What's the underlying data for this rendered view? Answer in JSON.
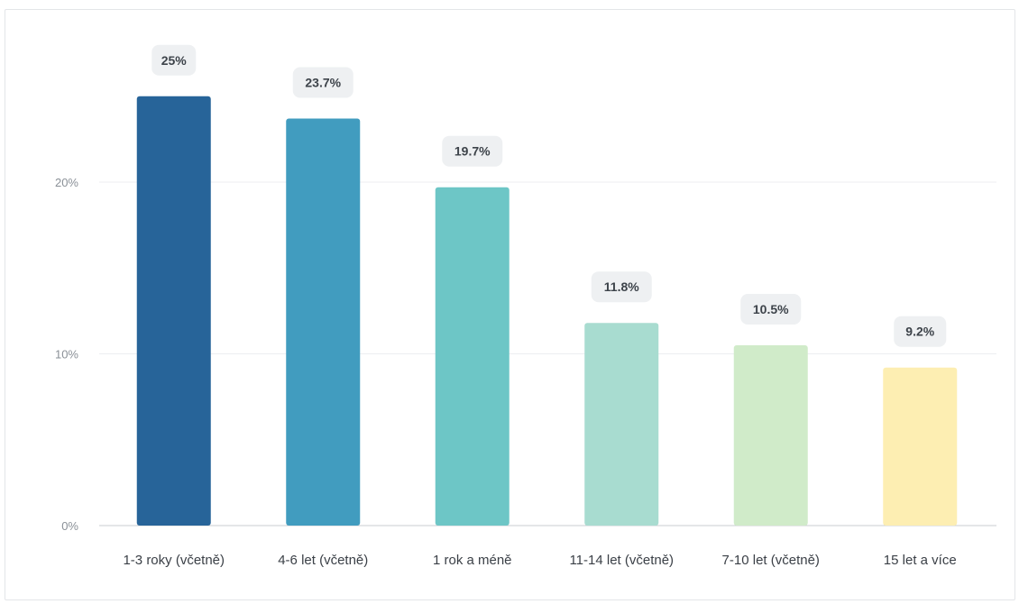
{
  "chart_data": {
    "type": "bar",
    "categories": [
      "1-3 roky (včetně)",
      "4-6 let (včetně)",
      "1 rok a méně",
      "11-14 let (včetně)",
      "7-10 let (včetně)",
      "15 let a více"
    ],
    "values": [
      25,
      23.7,
      19.7,
      11.8,
      10.5,
      9.2
    ],
    "data_labels": [
      "25%",
      "23.7%",
      "19.7%",
      "11.8%",
      "10.5%",
      "9.2%"
    ],
    "bar_colors": [
      "#276499",
      "#419cbf",
      "#6dc6c6",
      "#a8dcd0",
      "#d0ebc9",
      "#fdeeb2"
    ],
    "yticks": [
      0,
      10,
      20
    ],
    "ytick_labels": [
      "0%",
      "10%",
      "20%"
    ],
    "ylim": [
      0,
      25
    ],
    "grid": true,
    "legend": "none",
    "title": "",
    "xlabel": "",
    "ylabel": ""
  }
}
